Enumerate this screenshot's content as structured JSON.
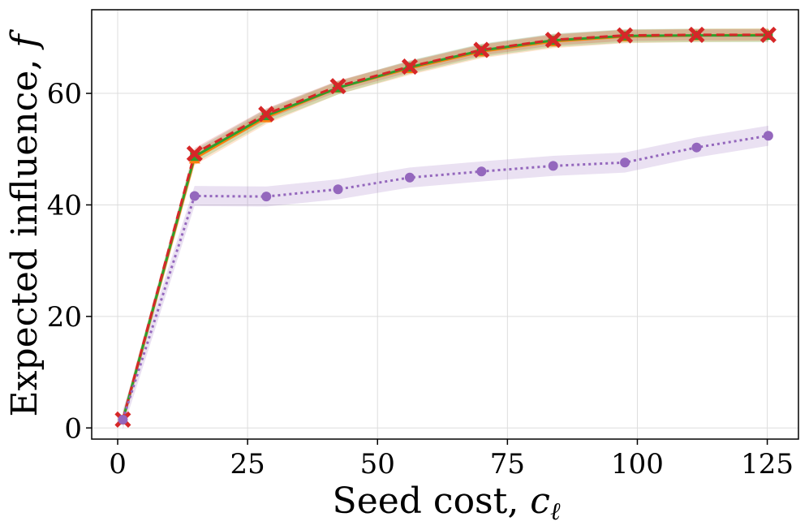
{
  "chart_data": {
    "type": "line",
    "title": "",
    "xlabel": "Seed cost, ",
    "xlabel_math": "c",
    "xlabel_sub": "ℓ",
    "ylabel": "Expected influence, ",
    "ylabel_math": "f",
    "xlim": [
      -5,
      131
    ],
    "ylim": [
      -2,
      75
    ],
    "xticks": [
      0,
      25,
      50,
      75,
      100,
      125
    ],
    "yticks": [
      0,
      20,
      40,
      60
    ],
    "grid": true,
    "x": [
      1,
      14.8,
      28.6,
      42.4,
      56.2,
      70,
      83.8,
      97.6,
      111.4,
      125.2
    ],
    "series": [
      {
        "name": "series-orange",
        "color": "#ff7f0e",
        "dash": "",
        "marker": "triangle",
        "values": [
          1.5,
          48.3,
          55.7,
          61.0,
          64.5,
          67.5,
          69.3,
          70.2,
          70.4,
          70.5
        ],
        "band": 1.2
      },
      {
        "name": "series-green",
        "color": "#2ca02c",
        "dash": "",
        "marker": "square",
        "values": [
          1.5,
          48.7,
          56.0,
          61.0,
          64.7,
          67.7,
          69.5,
          70.3,
          70.4,
          70.4
        ],
        "band": 1.2
      },
      {
        "name": "series-red",
        "color": "#d62728",
        "dash": "10,6",
        "marker": "x",
        "values": [
          1.5,
          49.2,
          56.3,
          61.3,
          64.8,
          67.8,
          69.6,
          70.4,
          70.5,
          70.5
        ],
        "band": 1.0
      },
      {
        "name": "series-purple",
        "color": "#9467bd",
        "dash": "3,4",
        "marker": "circle",
        "values": [
          1.5,
          41.6,
          41.5,
          42.8,
          44.9,
          46.0,
          47.0,
          47.6,
          50.3,
          52.4
        ],
        "band": 1.8
      }
    ]
  }
}
